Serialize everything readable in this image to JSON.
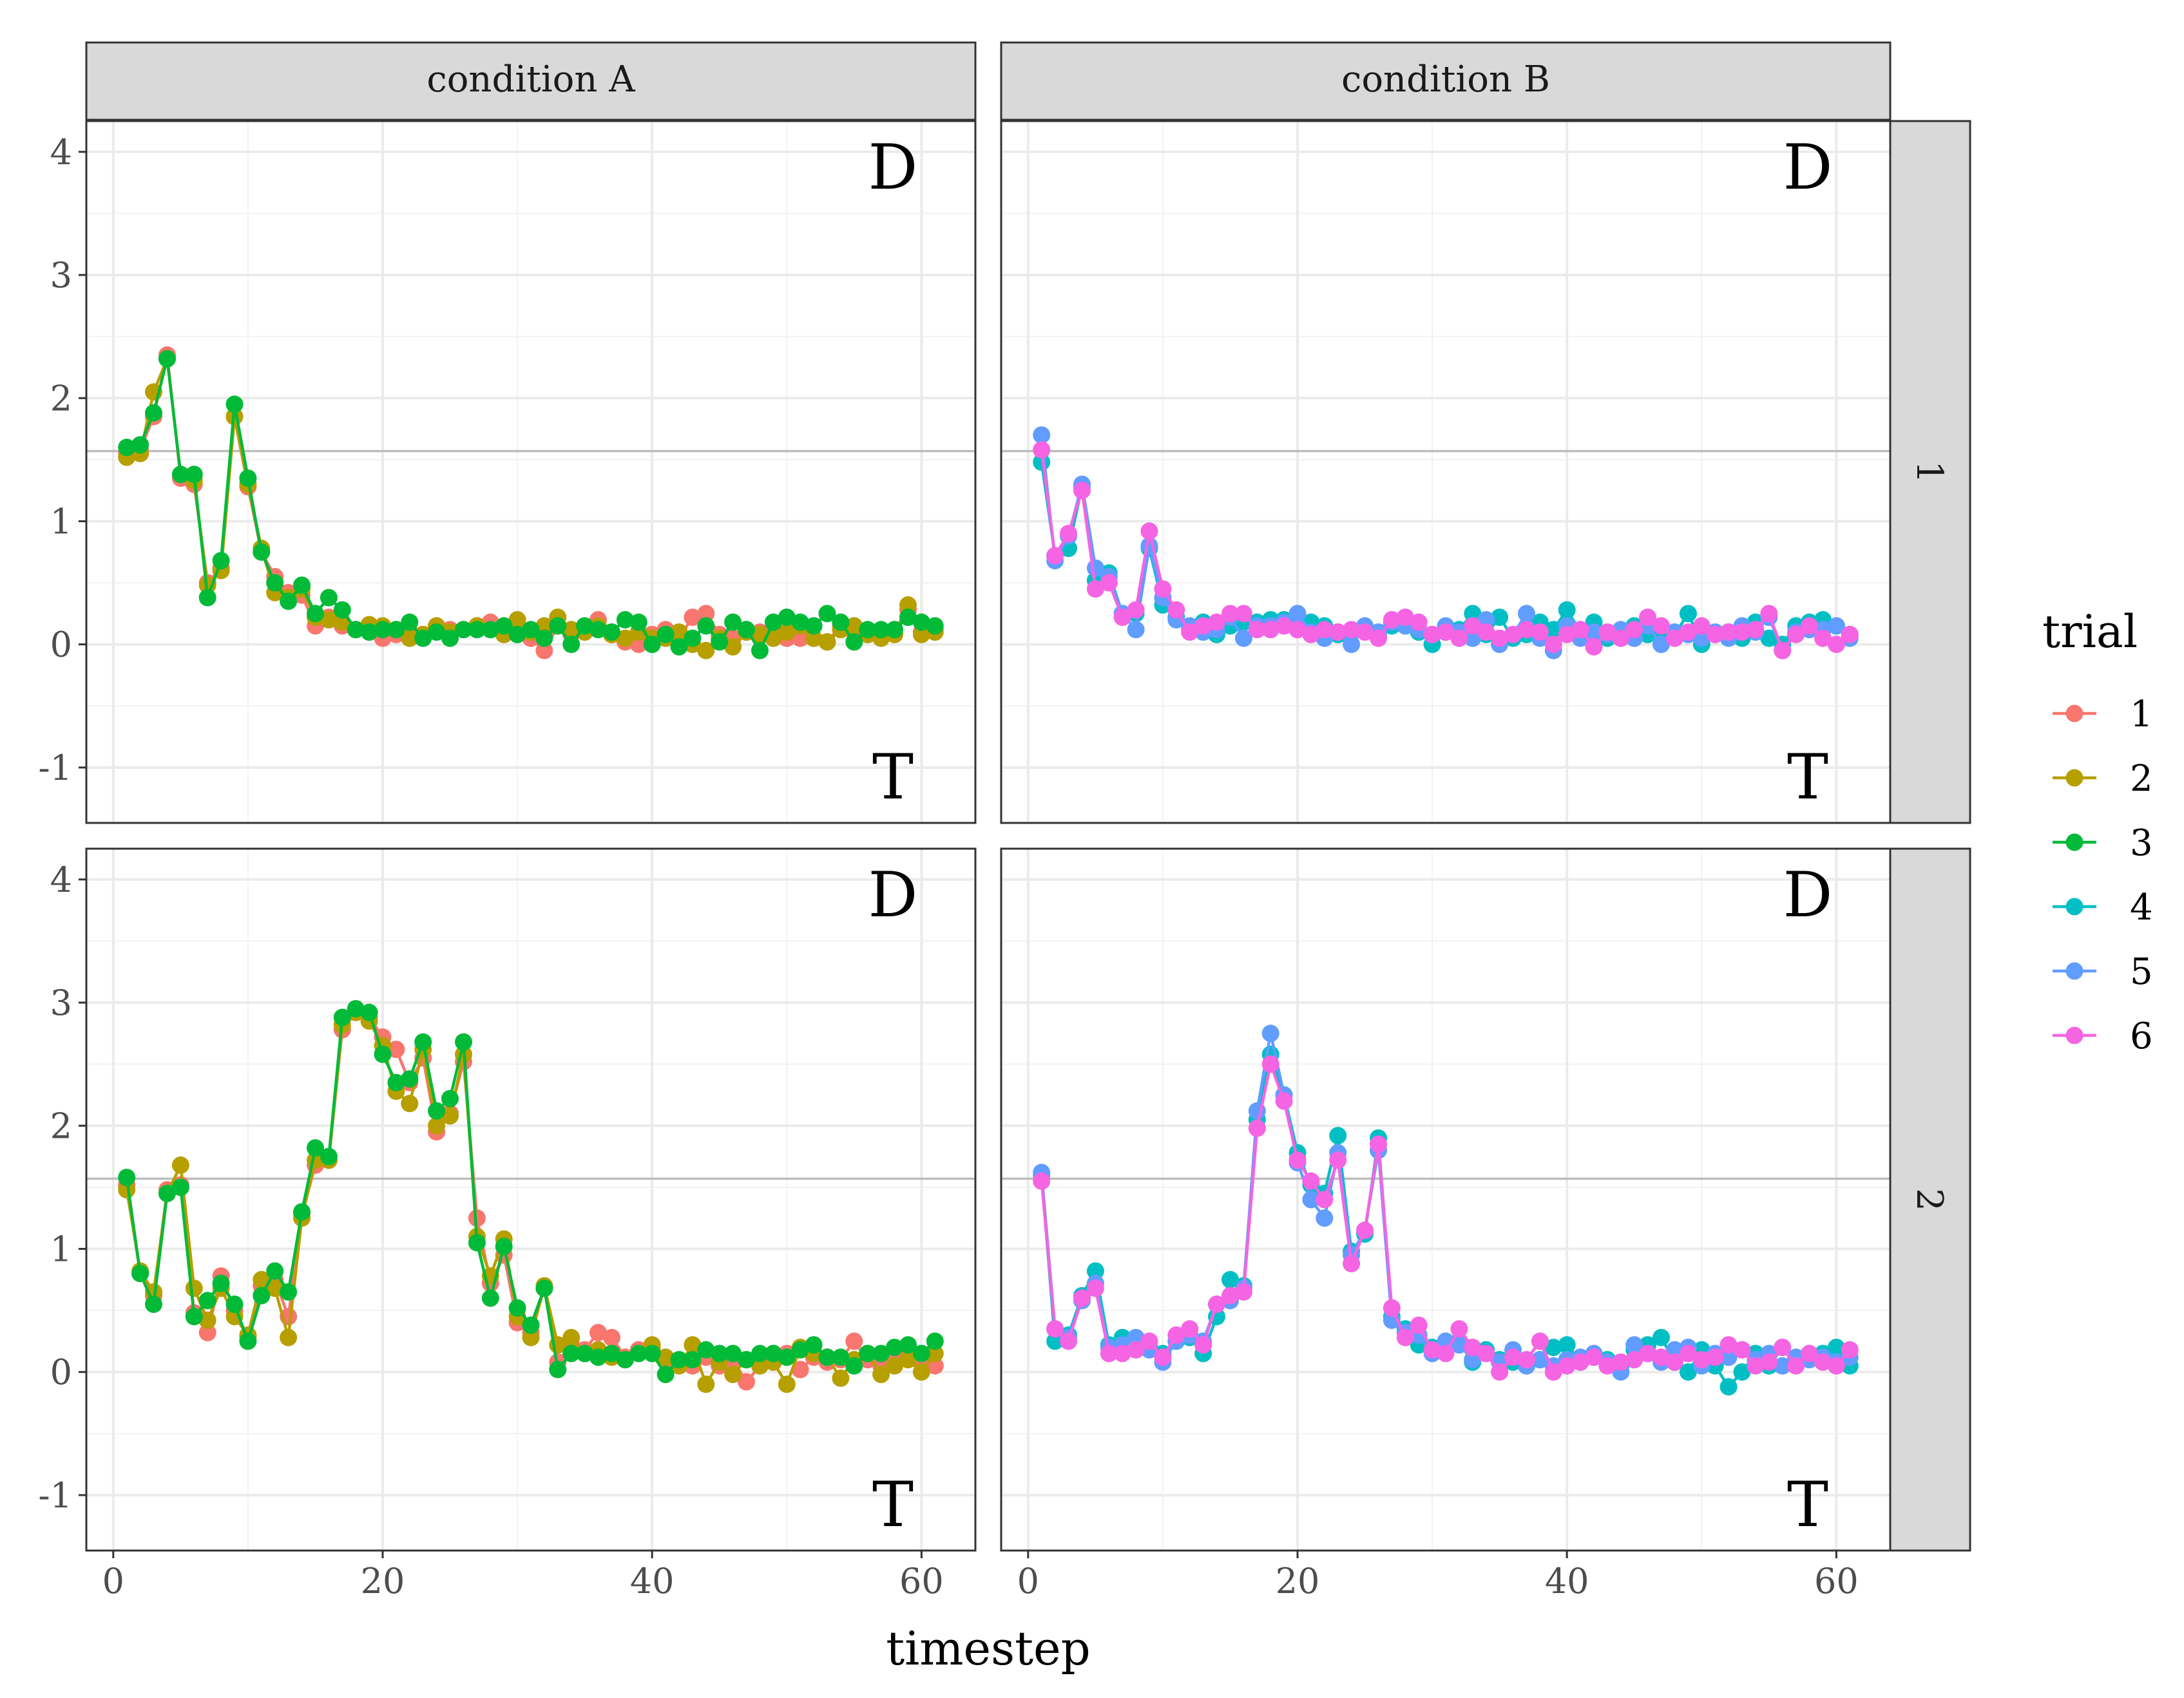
{
  "chart_data": {
    "type": "line",
    "xlabel": "timestep",
    "ylabel": "",
    "xlim": [
      -2,
      64
    ],
    "ylim": [
      -1.45,
      4.25
    ],
    "x_ticks": [
      0,
      20,
      40,
      60
    ],
    "y_ticks": [
      -1,
      0,
      1,
      2,
      3,
      4
    ],
    "reference_line": 1.57,
    "columns": [
      "condition A",
      "condition B"
    ],
    "rows": [
      "1",
      "2"
    ],
    "corner_labels": {
      "top": "D",
      "bottom": "T"
    },
    "legend": {
      "title": "trial",
      "position": "right",
      "entries": [
        {
          "label": "1",
          "color": "#F8766D"
        },
        {
          "label": "2",
          "color": "#B79F00"
        },
        {
          "label": "3",
          "color": "#00BA38"
        },
        {
          "label": "4",
          "color": "#00BFC4"
        },
        {
          "label": "5",
          "color": "#619CFF"
        },
        {
          "label": "6",
          "color": "#F564E3"
        }
      ]
    },
    "panels": [
      {
        "id": "A1",
        "column": "condition A",
        "row": "1",
        "series": [
          {
            "name": "1",
            "color": "#F8766D",
            "values": [
              1.55,
              1.58,
              1.85,
              2.35,
              1.35,
              1.3,
              0.5,
              0.62,
              1.85,
              1.28,
              0.75,
              0.55,
              0.42,
              0.4,
              0.15,
              0.22,
              0.15,
              0.12,
              0.15,
              0.05,
              0.08,
              0.1,
              0.08,
              0.15,
              0.12,
              0.12,
              0.15,
              0.18,
              0.12,
              0.1,
              0.05,
              -0.05,
              0.15,
              0.08,
              0.12,
              0.2,
              0.08,
              0.02,
              0.0,
              0.08,
              0.12,
              0.05,
              0.22,
              0.25,
              0.08,
              0.05,
              0.12,
              0.1,
              0.08,
              0.05,
              0.05,
              0.05,
              0.02,
              0.15,
              0.1,
              0.08,
              0.1,
              0.12,
              0.28,
              0.1,
              0.12
            ]
          },
          {
            "name": "2",
            "color": "#B79F00",
            "values": [
              1.52,
              1.55,
              2.05,
              2.32,
              1.38,
              1.33,
              0.48,
              0.6,
              1.85,
              1.3,
              0.78,
              0.42,
              0.38,
              0.45,
              0.22,
              0.2,
              0.18,
              0.12,
              0.16,
              0.15,
              0.12,
              0.05,
              0.08,
              0.15,
              0.1,
              0.12,
              0.15,
              0.12,
              0.08,
              0.2,
              0.1,
              0.15,
              0.22,
              0.12,
              0.1,
              0.15,
              0.08,
              0.05,
              0.1,
              0.05,
              0.05,
              0.1,
              0.0,
              -0.05,
              0.05,
              -0.02,
              0.1,
              0.08,
              0.05,
              0.1,
              0.15,
              0.05,
              0.02,
              0.12,
              0.15,
              0.08,
              0.05,
              0.08,
              0.32,
              0.08,
              0.1
            ]
          },
          {
            "name": "3",
            "color": "#00BA38",
            "values": [
              1.6,
              1.62,
              1.88,
              2.32,
              1.38,
              1.38,
              0.38,
              0.68,
              1.95,
              1.35,
              0.75,
              0.5,
              0.35,
              0.48,
              0.25,
              0.38,
              0.28,
              0.12,
              0.1,
              0.12,
              0.12,
              0.18,
              0.05,
              0.1,
              0.05,
              0.12,
              0.12,
              0.12,
              0.15,
              0.08,
              0.12,
              0.05,
              0.15,
              0.0,
              0.15,
              0.12,
              0.1,
              0.2,
              0.18,
              0.0,
              0.08,
              -0.02,
              0.05,
              0.15,
              0.02,
              0.18,
              0.12,
              -0.05,
              0.18,
              0.22,
              0.18,
              0.15,
              0.25,
              0.18,
              0.02,
              0.12,
              0.12,
              0.12,
              0.22,
              0.18,
              0.15
            ]
          }
        ]
      },
      {
        "id": "B1",
        "column": "condition B",
        "row": "1",
        "series": [
          {
            "name": "4",
            "color": "#00BFC4",
            "values": [
              1.48,
              0.72,
              0.78,
              1.28,
              0.52,
              0.58,
              0.25,
              0.25,
              0.78,
              0.32,
              0.22,
              0.12,
              0.18,
              0.08,
              0.15,
              0.18,
              0.18,
              0.2,
              0.2,
              0.15,
              0.18,
              0.15,
              0.08,
              0.1,
              0.12,
              0.08,
              0.15,
              0.15,
              0.1,
              0.0,
              0.1,
              0.12,
              0.25,
              0.08,
              0.22,
              0.05,
              0.08,
              0.18,
              0.12,
              0.28,
              0.1,
              0.18,
              0.05,
              0.1,
              0.15,
              0.08,
              0.1,
              0.08,
              0.25,
              0.0,
              0.08,
              0.1,
              0.05,
              0.18,
              0.05,
              0.0,
              0.15,
              0.18,
              0.2,
              0.15,
              0.08
            ]
          },
          {
            "name": "5",
            "color": "#619CFF",
            "values": [
              1.7,
              0.68,
              0.88,
              1.3,
              0.62,
              0.55,
              0.25,
              0.12,
              0.8,
              0.38,
              0.2,
              0.15,
              0.1,
              0.12,
              0.22,
              0.05,
              0.15,
              0.15,
              0.18,
              0.25,
              0.1,
              0.05,
              0.1,
              0.0,
              0.15,
              0.1,
              0.18,
              0.15,
              0.12,
              0.08,
              0.15,
              0.1,
              0.05,
              0.2,
              0.0,
              0.08,
              0.25,
              0.05,
              -0.05,
              0.15,
              0.05,
              0.1,
              0.08,
              0.12,
              0.05,
              0.15,
              0.0,
              0.1,
              0.08,
              0.05,
              0.1,
              0.05,
              0.15,
              0.1,
              0.22,
              -0.05,
              0.1,
              0.12,
              0.12,
              0.15,
              0.05
            ]
          },
          {
            "name": "6",
            "color": "#F564E3",
            "values": [
              1.58,
              0.72,
              0.9,
              1.25,
              0.45,
              0.5,
              0.22,
              0.28,
              0.92,
              0.45,
              0.28,
              0.1,
              0.15,
              0.18,
              0.25,
              0.25,
              0.12,
              0.12,
              0.15,
              0.12,
              0.08,
              0.12,
              0.1,
              0.12,
              0.1,
              0.05,
              0.2,
              0.22,
              0.18,
              0.08,
              0.1,
              0.05,
              0.15,
              0.1,
              0.05,
              0.08,
              0.12,
              0.1,
              0.0,
              0.08,
              0.12,
              -0.02,
              0.1,
              0.05,
              0.12,
              0.22,
              0.15,
              0.05,
              0.1,
              0.15,
              0.08,
              0.1,
              0.1,
              0.12,
              0.25,
              -0.05,
              0.08,
              0.15,
              0.05,
              0.0,
              0.08
            ]
          }
        ]
      },
      {
        "id": "A2",
        "column": "condition A",
        "row": "2",
        "series": [
          {
            "name": "1",
            "color": "#F8766D",
            "values": [
              1.52,
              0.8,
              0.62,
              1.48,
              1.52,
              0.48,
              0.32,
              0.78,
              0.5,
              0.28,
              0.7,
              0.75,
              0.45,
              1.28,
              1.68,
              1.72,
              2.78,
              2.92,
              2.88,
              2.72,
              2.62,
              2.35,
              2.55,
              1.95,
              2.1,
              2.52,
              1.25,
              0.72,
              0.95,
              0.4,
              0.32,
              0.68,
              0.08,
              0.22,
              0.18,
              0.32,
              0.28,
              0.12,
              0.18,
              0.2,
              0.1,
              0.08,
              0.05,
              0.12,
              0.05,
              0.1,
              -0.08,
              0.05,
              0.1,
              0.15,
              0.02,
              0.12,
              0.08,
              0.1,
              0.25,
              0.1,
              0.05,
              0.12,
              0.15,
              0.08,
              0.05
            ]
          },
          {
            "name": "2",
            "color": "#B79F00",
            "values": [
              1.48,
              0.82,
              0.65,
              1.45,
              1.68,
              0.68,
              0.42,
              0.68,
              0.45,
              0.3,
              0.75,
              0.68,
              0.28,
              1.25,
              1.72,
              1.72,
              2.82,
              2.92,
              2.85,
              2.65,
              2.28,
              2.18,
              2.62,
              2.0,
              2.08,
              2.58,
              1.1,
              0.78,
              1.08,
              0.45,
              0.28,
              0.7,
              0.22,
              0.28,
              0.15,
              0.18,
              0.12,
              0.1,
              0.15,
              0.22,
              0.12,
              0.05,
              0.22,
              -0.1,
              0.08,
              -0.02,
              0.1,
              0.05,
              0.08,
              -0.1,
              0.2,
              0.15,
              0.12,
              -0.05,
              0.1,
              0.15,
              -0.02,
              0.05,
              0.1,
              0.0,
              0.15
            ]
          },
          {
            "name": "3",
            "color": "#00BA38",
            "values": [
              1.58,
              0.8,
              0.55,
              1.45,
              1.5,
              0.45,
              0.58,
              0.72,
              0.55,
              0.25,
              0.62,
              0.82,
              0.65,
              1.3,
              1.82,
              1.75,
              2.88,
              2.95,
              2.92,
              2.58,
              2.35,
              2.38,
              2.68,
              2.12,
              2.22,
              2.68,
              1.05,
              0.6,
              1.02,
              0.52,
              0.38,
              0.68,
              0.02,
              0.15,
              0.15,
              0.12,
              0.15,
              0.1,
              0.15,
              0.15,
              -0.02,
              0.1,
              0.1,
              0.18,
              0.15,
              0.15,
              0.1,
              0.15,
              0.15,
              0.12,
              0.18,
              0.22,
              0.12,
              0.12,
              0.05,
              0.15,
              0.15,
              0.2,
              0.22,
              0.15,
              0.25
            ]
          }
        ]
      },
      {
        "id": "B2",
        "column": "condition B",
        "row": "2",
        "series": [
          {
            "name": "4",
            "color": "#00BFC4",
            "values": [
              1.6,
              0.25,
              0.3,
              0.62,
              0.82,
              0.22,
              0.28,
              0.25,
              0.2,
              0.15,
              0.25,
              0.28,
              0.15,
              0.45,
              0.75,
              0.7,
              2.05,
              2.58,
              2.25,
              1.78,
              1.52,
              1.45,
              1.92,
              0.98,
              1.12,
              1.9,
              0.45,
              0.35,
              0.22,
              0.2,
              0.22,
              0.25,
              0.08,
              0.18,
              0.1,
              0.08,
              0.05,
              0.1,
              0.2,
              0.22,
              0.08,
              0.12,
              0.1,
              0.05,
              0.18,
              0.22,
              0.28,
              0.08,
              0.0,
              0.18,
              0.05,
              -0.12,
              0.0,
              0.15,
              0.05,
              0.2,
              0.1,
              0.12,
              0.15,
              0.2,
              0.05
            ]
          },
          {
            "name": "5",
            "color": "#619CFF",
            "values": [
              1.62,
              0.35,
              0.28,
              0.58,
              0.72,
              0.2,
              0.22,
              0.28,
              0.18,
              0.08,
              0.25,
              0.3,
              0.25,
              0.55,
              0.58,
              0.68,
              2.12,
              2.75,
              2.25,
              1.7,
              1.4,
              1.25,
              1.78,
              0.95,
              1.15,
              1.8,
              0.42,
              0.32,
              0.3,
              0.15,
              0.25,
              0.22,
              0.1,
              0.15,
              0.08,
              0.18,
              0.05,
              0.1,
              0.05,
              0.1,
              0.12,
              0.15,
              0.08,
              0.0,
              0.22,
              0.15,
              0.08,
              0.18,
              0.2,
              0.05,
              0.15,
              0.12,
              0.18,
              0.1,
              0.15,
              0.05,
              0.12,
              0.1,
              0.12,
              0.08,
              0.12
            ]
          },
          {
            "name": "6",
            "color": "#F564E3",
            "values": [
              1.55,
              0.35,
              0.25,
              0.6,
              0.68,
              0.15,
              0.15,
              0.18,
              0.25,
              0.12,
              0.3,
              0.35,
              0.22,
              0.55,
              0.62,
              0.65,
              1.98,
              2.5,
              2.2,
              1.72,
              1.55,
              1.4,
              1.72,
              0.88,
              1.15,
              1.85,
              0.52,
              0.28,
              0.38,
              0.18,
              0.15,
              0.35,
              0.2,
              0.15,
              0.0,
              0.12,
              0.1,
              0.25,
              0.0,
              0.05,
              0.08,
              0.12,
              0.05,
              0.08,
              0.1,
              0.15,
              0.12,
              0.08,
              0.15,
              0.1,
              0.12,
              0.22,
              0.18,
              0.05,
              0.08,
              0.2,
              0.05,
              0.15,
              0.08,
              0.05,
              0.18
            ]
          }
        ]
      }
    ]
  }
}
